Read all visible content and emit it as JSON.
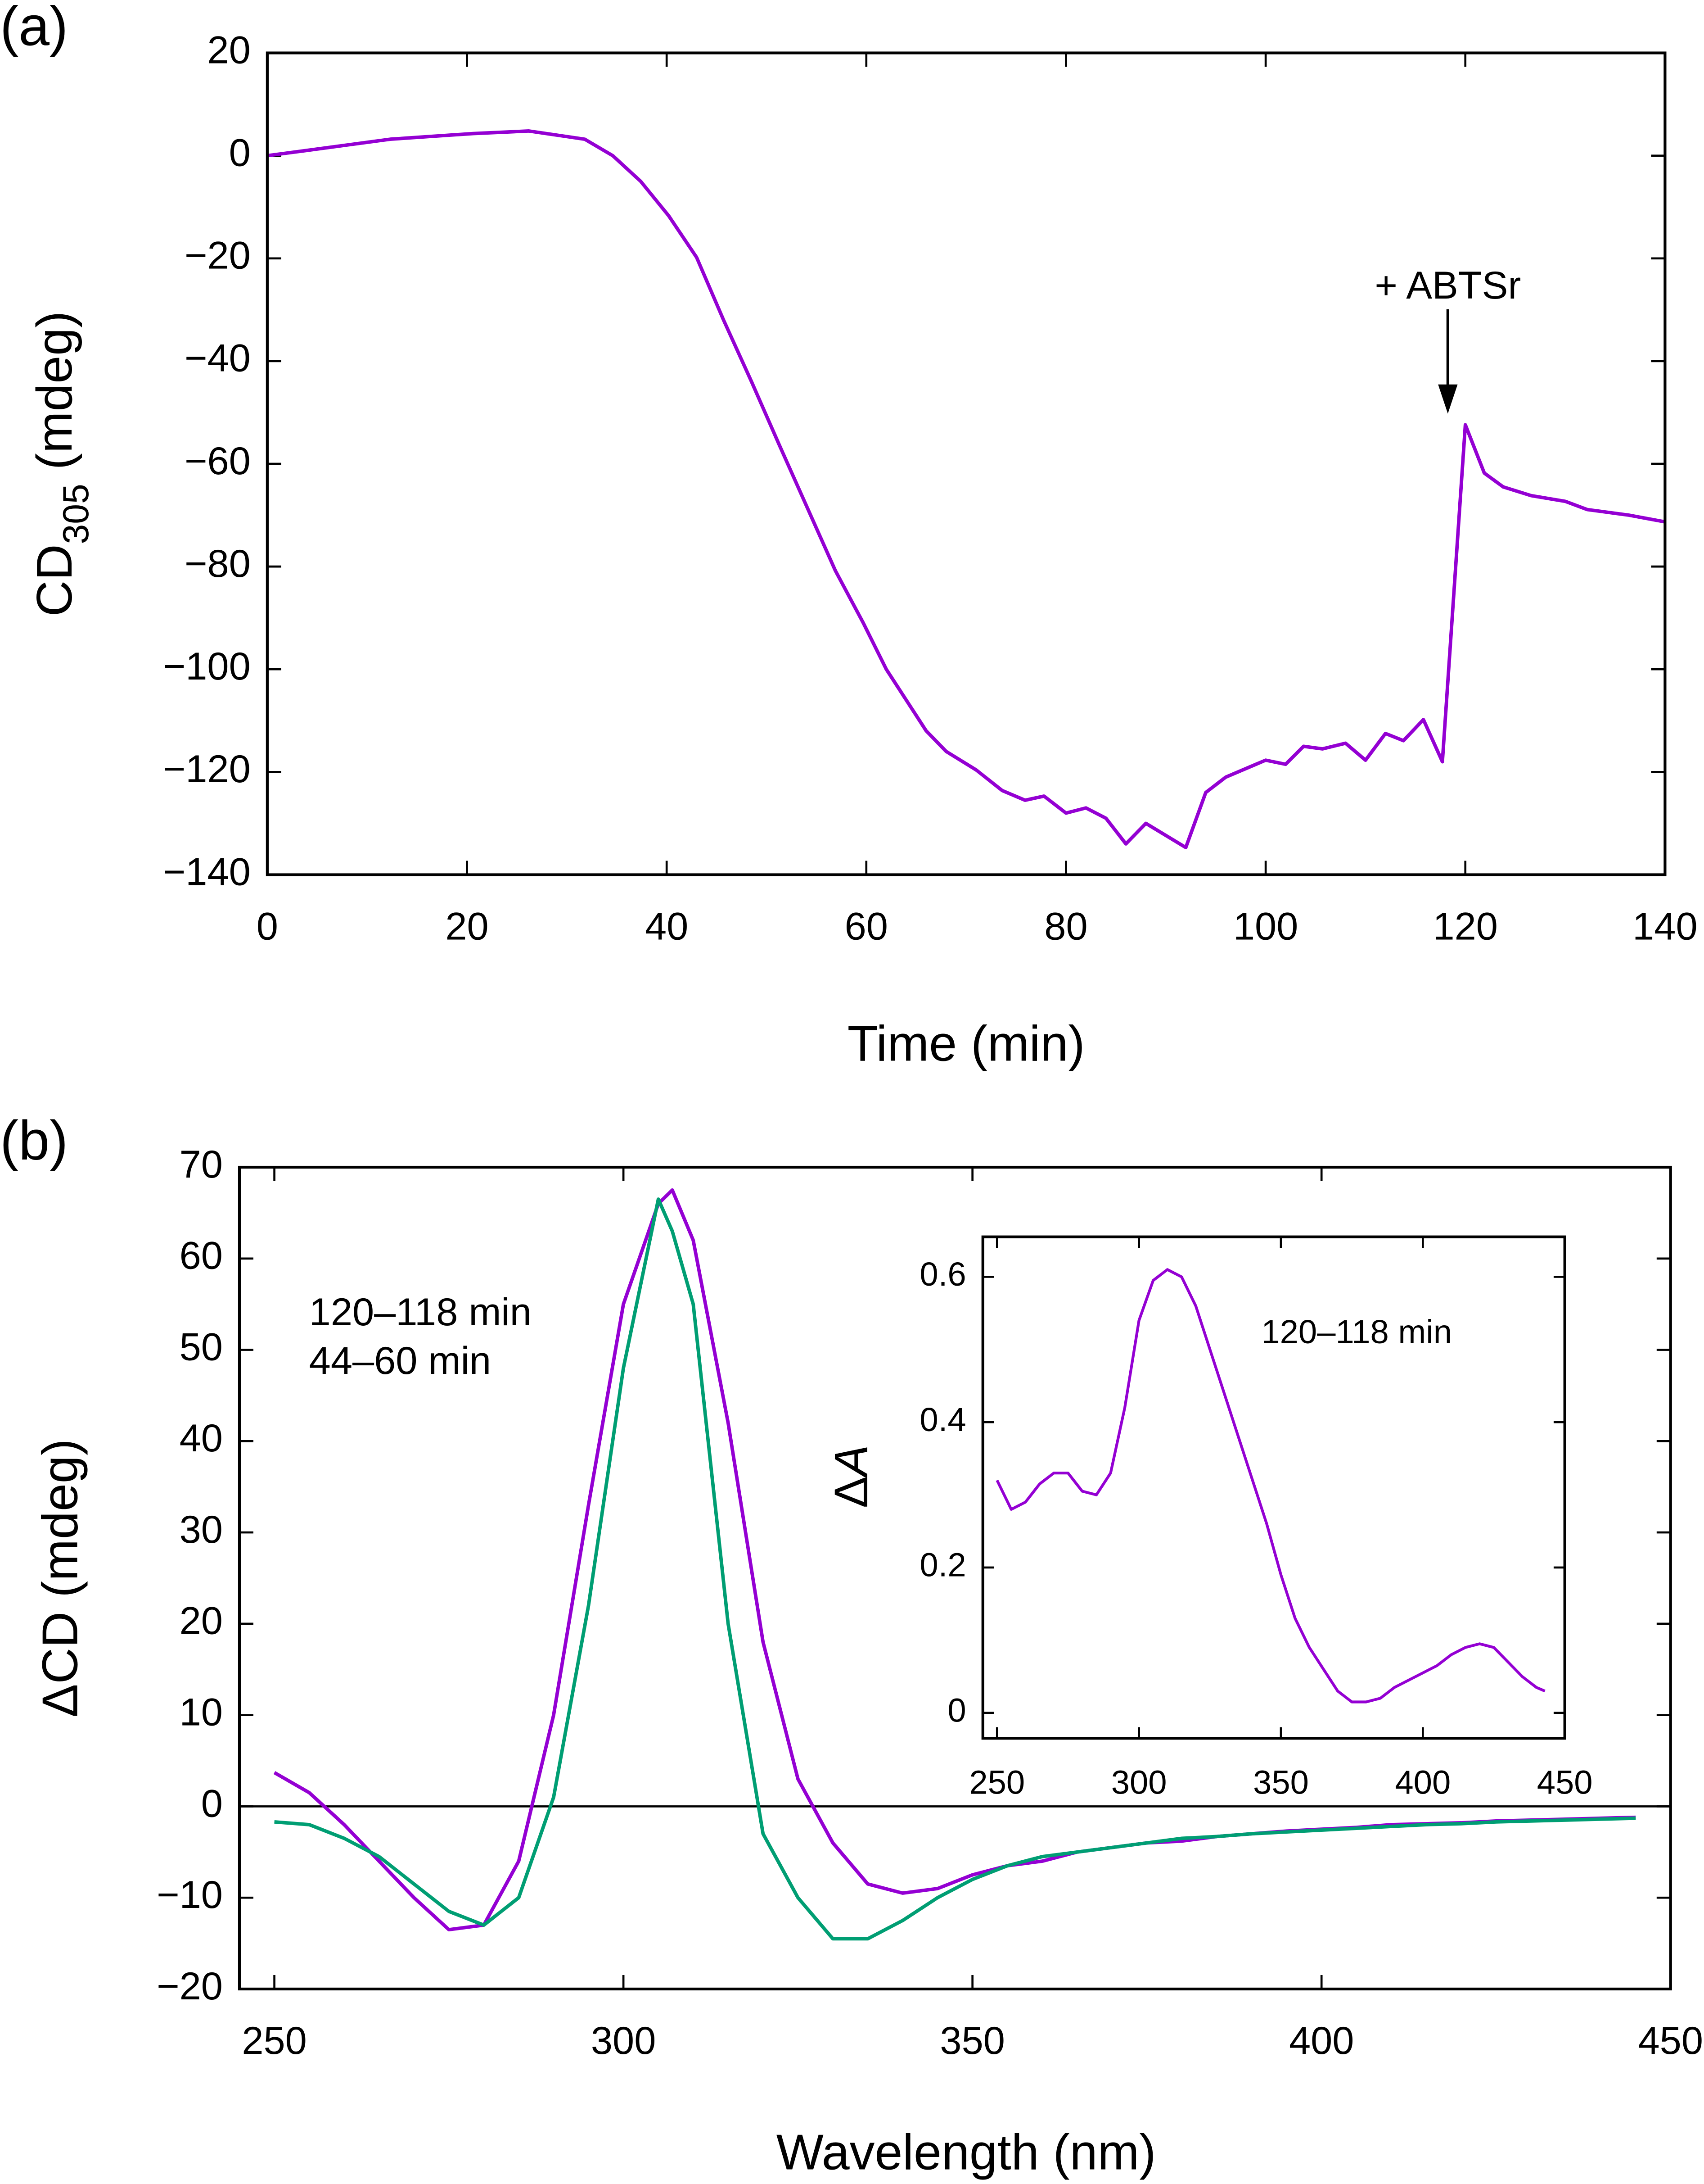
{
  "chart_data": [
    {
      "type": "line",
      "label": "(a)",
      "xlabel": "Time (min)",
      "ylabel": [
        {
          "text": "CD"
        },
        {
          "text": "305",
          "sub": true
        },
        {
          "text": " (mdeg)"
        }
      ],
      "annotation": "+ ABTSr",
      "xlim": [
        0,
        140
      ],
      "xticks": [
        0,
        20,
        40,
        60,
        80,
        100,
        120,
        140
      ],
      "ylim": [
        -140,
        20
      ],
      "yticks": [
        20,
        0,
        {
          "value": -20,
          "label": "−20"
        },
        {
          "value": -40,
          "label": "−40"
        },
        {
          "value": -60,
          "label": "−60"
        },
        {
          "value": -80,
          "label": "−80"
        },
        {
          "value": -100,
          "label": "−100"
        },
        {
          "value": -120,
          "label": "−120"
        },
        {
          "value": -140,
          "label": "−140"
        }
      ],
      "x": [
        0,
        3.9,
        12.3,
        20.6,
        26.2,
        31.8,
        34.6,
        37.4,
        40.2,
        43,
        45.7,
        48.5,
        51.3,
        54.1,
        56.9,
        59.7,
        62,
        66,
        68,
        71,
        73.6,
        75.9,
        77.8,
        80,
        82,
        84,
        86,
        88,
        92,
        94,
        96,
        100,
        102,
        103.8,
        105.7,
        108,
        110,
        112,
        113.8,
        115.8,
        117.7,
        120,
        121.9,
        123.8,
        126.6,
        130,
        132.2,
        136.4,
        140
      ],
      "series": [
        {
          "name": null,
          "color": "#9400d3",
          "values": [
            0,
            1,
            3.2,
            4.3,
            4.8,
            3.2,
            0,
            -5,
            -11.7,
            -19.8,
            -32,
            -44,
            -56.4,
            -68.6,
            -80.8,
            -91,
            -100,
            -112,
            -116,
            -119.6,
            -123.6,
            -125.5,
            -124.7,
            -128,
            -127,
            -129,
            -134,
            -130,
            -134.7,
            -124,
            -121,
            -117.7,
            -118.5,
            -115,
            -115.5,
            -114.4,
            -117.7,
            -112.5,
            -113.9,
            -109.8,
            -118,
            -52.4,
            -61.8,
            -64.5,
            -66.2,
            -67.3,
            -68.9,
            -70,
            -71.3
          ]
        }
      ]
    },
    {
      "type": "line",
      "label": "(b)",
      "xlabel": "Wavelength (nm)",
      "ylabel": [
        {
          "text": "ΔCD (mdeg)"
        }
      ],
      "zero_line": true,
      "xlim": [
        245,
        450
      ],
      "xticks": [
        250,
        300,
        350,
        400,
        450
      ],
      "ylim": [
        -20,
        70
      ],
      "yticks": [
        70,
        60,
        50,
        40,
        30,
        20,
        10,
        0,
        {
          "value": -10,
          "label": "−10"
        },
        {
          "value": -20,
          "label": "−20"
        }
      ],
      "x": [
        250,
        255,
        260,
        265,
        270,
        275,
        280,
        285,
        290,
        295,
        300,
        305,
        307,
        310,
        315,
        320,
        325,
        330,
        335,
        340,
        345,
        350,
        355,
        360,
        365,
        370,
        375,
        380,
        385,
        390,
        395,
        400,
        405,
        410,
        415,
        420,
        425,
        430,
        435,
        440,
        445
      ],
      "series": [
        {
          "name": "120–118 min",
          "color": "#9400d3",
          "values": [
            3.7,
            1.5,
            -2,
            -6,
            -10,
            -13.5,
            -13,
            -6,
            10,
            33,
            55,
            66,
            67.5,
            62,
            42,
            18,
            3,
            -4,
            -8.5,
            -9.5,
            -9,
            -7.5,
            -6.5,
            -6,
            -5,
            -4.5,
            -4,
            -3.8,
            -3.3,
            -3,
            -2.7,
            -2.5,
            -2.3,
            -2,
            -1.9,
            -1.8,
            -1.6,
            -1.5,
            -1.4,
            -1.3,
            -1.2
          ]
        },
        {
          "name": "44–60 min",
          "color": "#009e73",
          "values": [
            -1.7,
            -2,
            -3.5,
            -5.5,
            -8.5,
            -11.5,
            -13,
            -10,
            1,
            22,
            48,
            66.5,
            63,
            55,
            20,
            -3,
            -10,
            -14.5,
            -14.5,
            -12.5,
            -10,
            -8,
            -6.5,
            -5.5,
            -5,
            -4.5,
            -4,
            -3.5,
            -3.3,
            -3,
            -2.8,
            -2.6,
            -2.4,
            -2.2,
            -2,
            -1.9,
            -1.7,
            -1.6,
            -1.5,
            -1.4,
            -1.3
          ]
        }
      ]
    },
    {
      "type": "line",
      "ylabel": [
        {
          "text": "Δ"
        },
        {
          "text": "A",
          "italic": true
        }
      ],
      "xlim": [
        245,
        450
      ],
      "xticks": [
        250,
        300,
        350,
        400,
        450
      ],
      "ylim": [
        -0.035,
        0.655
      ],
      "yticks": [
        0,
        0.2,
        0.4,
        0.6
      ],
      "x": [
        250,
        255,
        260,
        265,
        270,
        275,
        280,
        285,
        290,
        295,
        300,
        305,
        310,
        315,
        320,
        325,
        330,
        335,
        340,
        345,
        350,
        355,
        360,
        365,
        370,
        375,
        380,
        385,
        390,
        395,
        400,
        405,
        410,
        415,
        420,
        425,
        430,
        435,
        440,
        443
      ],
      "series": [
        {
          "name": "120–118 min",
          "color": "#9400d3",
          "values": [
            0.32,
            0.28,
            0.29,
            0.315,
            0.33,
            0.33,
            0.305,
            0.3,
            0.33,
            0.42,
            0.54,
            0.595,
            0.61,
            0.6,
            0.56,
            0.5,
            0.44,
            0.38,
            0.32,
            0.26,
            0.19,
            0.13,
            0.09,
            0.06,
            0.03,
            0.015,
            0.015,
            0.02,
            0.035,
            0.045,
            0.055,
            0.065,
            0.08,
            0.09,
            0.095,
            0.09,
            0.07,
            0.05,
            0.035,
            0.03
          ]
        }
      ]
    }
  ]
}
